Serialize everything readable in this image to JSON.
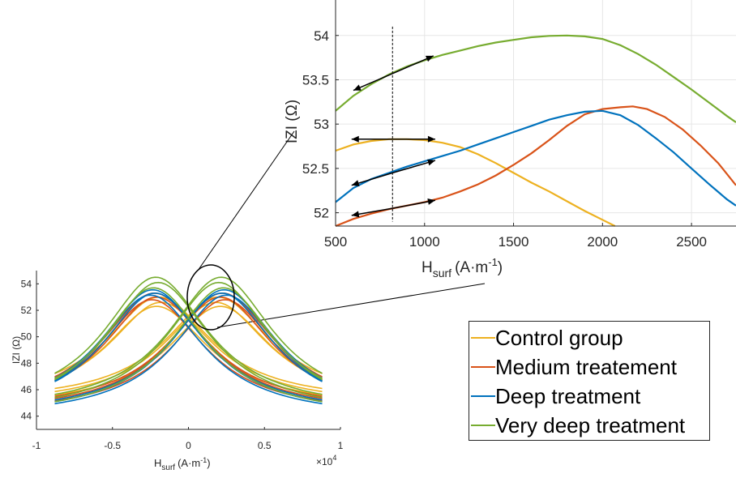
{
  "colors": {
    "control": "#EDB120",
    "medium": "#D95319",
    "deep": "#0072BD",
    "very_deep": "#77AC30",
    "axis": "#262626",
    "grid": "#e6e6e6"
  },
  "chart_data": [
    {
      "type": "line",
      "name_of_panel": "zoom",
      "xlabel_main": "H",
      "xlabel_sub": "surf",
      "xlabel_unit": "(A·m",
      "xlabel_exp": "-1",
      "xlabel_close": ")",
      "ylabel": "IZI (Ω)",
      "xlim": [
        500,
        2750
      ],
      "ylim": [
        51.85,
        54.4
      ],
      "xticks": [
        "500",
        "1000",
        "1500",
        "2000",
        "2500"
      ],
      "yticks": [
        "52",
        "52.5",
        "53",
        "53.5",
        "54"
      ],
      "grid": true,
      "dashed_line_x": 820,
      "series": [
        {
          "name": "Control group",
          "color_key": "control",
          "x": [
            500,
            600,
            700,
            800,
            900,
            1000,
            1100,
            1200,
            1300,
            1400,
            1500,
            1600,
            1700,
            1800,
            1900,
            2000,
            2070
          ],
          "y": [
            52.7,
            52.77,
            52.81,
            52.83,
            52.83,
            52.82,
            52.79,
            52.74,
            52.66,
            52.56,
            52.45,
            52.34,
            52.24,
            52.13,
            52.02,
            51.92,
            51.85
          ]
        },
        {
          "name": "Medium treatement",
          "color_key": "medium",
          "x": [
            500,
            600,
            700,
            800,
            900,
            1000,
            1100,
            1200,
            1300,
            1400,
            1500,
            1600,
            1700,
            1800,
            1900,
            2000,
            2100,
            2170,
            2250,
            2350,
            2450,
            2550,
            2650,
            2750
          ],
          "y": [
            51.85,
            51.93,
            51.99,
            52.04,
            52.08,
            52.12,
            52.17,
            52.24,
            52.32,
            52.42,
            52.54,
            52.67,
            52.82,
            52.98,
            53.11,
            53.17,
            53.19,
            53.2,
            53.17,
            53.08,
            52.94,
            52.76,
            52.56,
            52.31
          ]
        },
        {
          "name": "Deep treatment",
          "color_key": "deep",
          "x": [
            500,
            600,
            700,
            800,
            900,
            1000,
            1100,
            1200,
            1300,
            1400,
            1500,
            1600,
            1700,
            1800,
            1900,
            2000,
            2100,
            2200,
            2300,
            2400,
            2500,
            2600,
            2700,
            2750
          ],
          "y": [
            52.12,
            52.28,
            52.38,
            52.45,
            52.52,
            52.58,
            52.64,
            52.7,
            52.77,
            52.84,
            52.91,
            52.98,
            53.05,
            53.1,
            53.14,
            53.15,
            53.1,
            52.99,
            52.84,
            52.68,
            52.5,
            52.32,
            52.15,
            52.08
          ]
        },
        {
          "name": "Very deep treatment",
          "color_key": "very_deep",
          "x": [
            500,
            600,
            700,
            800,
            900,
            1000,
            1100,
            1200,
            1300,
            1400,
            1500,
            1600,
            1700,
            1800,
            1900,
            2000,
            2100,
            2200,
            2300,
            2400,
            2500,
            2600,
            2700,
            2750
          ],
          "y": [
            53.15,
            53.32,
            53.45,
            53.56,
            53.65,
            53.72,
            53.78,
            53.83,
            53.88,
            53.92,
            53.95,
            53.98,
            53.995,
            54.0,
            53.99,
            53.96,
            53.89,
            53.79,
            53.67,
            53.53,
            53.39,
            53.24,
            53.09,
            53.02
          ]
        }
      ],
      "arrows": [
        {
          "from": [
            820,
            53.57
          ],
          "to": [
            1050,
            53.77
          ]
        },
        {
          "from": [
            820,
            53.57
          ],
          "to": [
            600,
            53.38
          ]
        },
        {
          "from": [
            820,
            52.83
          ],
          "to": [
            1060,
            52.83
          ]
        },
        {
          "from": [
            820,
            52.83
          ],
          "to": [
            590,
            52.83
          ]
        },
        {
          "from": [
            820,
            52.45
          ],
          "to": [
            1060,
            52.59
          ]
        },
        {
          "from": [
            820,
            52.45
          ],
          "to": [
            590,
            52.31
          ]
        },
        {
          "from": [
            820,
            52.05
          ],
          "to": [
            1060,
            52.14
          ]
        },
        {
          "from": [
            820,
            52.05
          ],
          "to": [
            590,
            51.97
          ]
        }
      ]
    },
    {
      "type": "line",
      "name_of_panel": "full",
      "xlabel_main": "H",
      "xlabel_sub": "surf",
      "xlabel_unit": "(A·m",
      "xlabel_exp": "-1",
      "xlabel_close": ")",
      "ylabel": "IZI (Ω)",
      "x_multiplier": "×10",
      "x_multiplier_exp": "4",
      "xlim": [
        -1,
        1
      ],
      "ylim": [
        43,
        55
      ],
      "xticks": [
        "-1",
        "-0.5",
        "0",
        "0.5",
        "1"
      ],
      "yticks": [
        "44",
        "46",
        "48",
        "50",
        "52",
        "54"
      ],
      "grid": false,
      "loops": [
        {
          "color_key": "control",
          "peak": 52.6,
          "peakx": 0.18,
          "end": 44.8,
          "offsets": [
            0,
            0.4,
            -0.3
          ]
        },
        {
          "color_key": "medium",
          "peak": 53.0,
          "peakx": 0.21,
          "end": 44.2,
          "offsets": [
            0,
            0.3,
            -0.2
          ]
        },
        {
          "color_key": "deep",
          "peak": 53.3,
          "peakx": 0.22,
          "end": 43.9,
          "offsets": [
            0,
            0.25,
            -0.15
          ]
        },
        {
          "color_key": "very_deep",
          "peak": 54.1,
          "peakx": 0.2,
          "end": 44.1,
          "offsets": [
            0,
            0.4,
            -0.4
          ]
        }
      ]
    }
  ],
  "legend": {
    "items": [
      {
        "label": "Control group",
        "color_key": "control"
      },
      {
        "label": "Medium treatement",
        "color_key": "medium"
      },
      {
        "label": "Deep treatment",
        "color_key": "deep"
      },
      {
        "label": "Very deep treatment",
        "color_key": "very_deep"
      }
    ]
  }
}
